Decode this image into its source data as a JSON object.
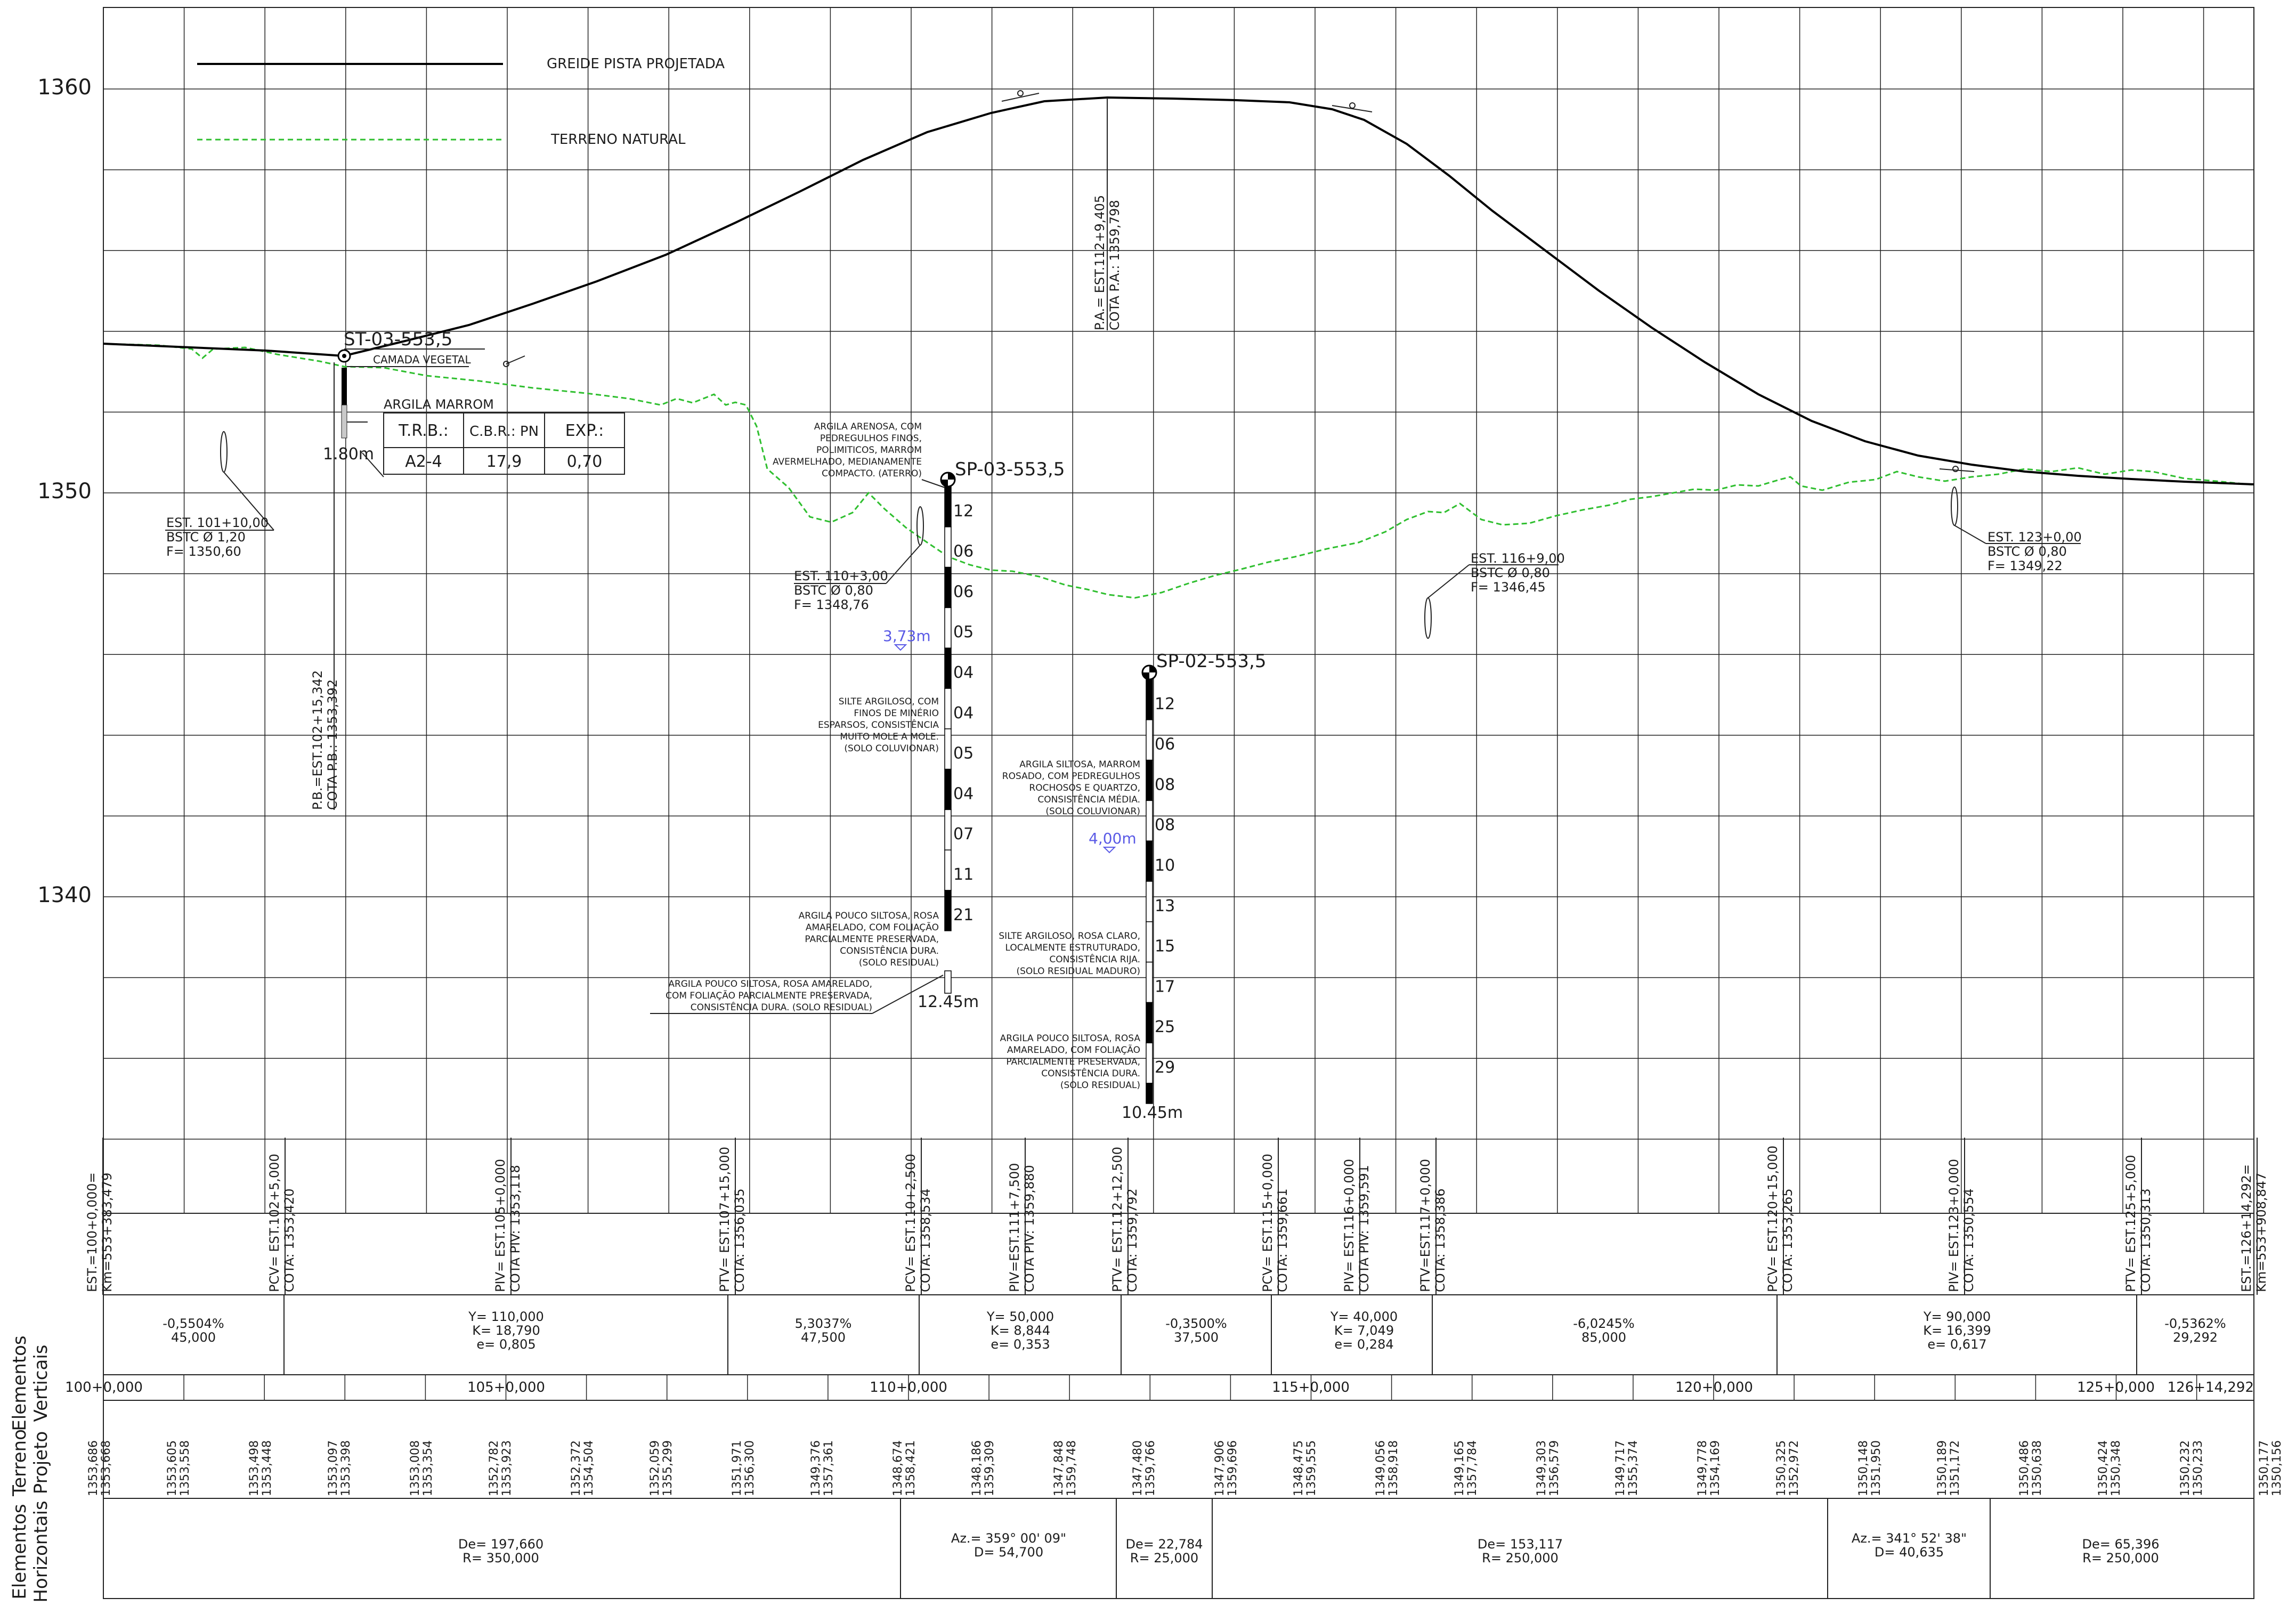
{
  "profile": {
    "elevation_labels": [
      "1360",
      "1350",
      "1340"
    ],
    "legend": {
      "grade_label": "GREIDE PISTA PROJETADA",
      "terrain_label": "TERRENO NATURAL"
    },
    "high_point": {
      "station_label": "P.A.= EST.112+9,405",
      "elevation_label": "COTA P.A.: 1359,798"
    },
    "low_point": {
      "station_label": "P.B.=EST.102+15,342",
      "elevation_label": "COTA P.B.: 1353,392"
    }
  },
  "boreholes": [
    {
      "id": "ST-03-553,5",
      "top_label": "CAMADA VEGETAL",
      "layer_label": "ARGILA MARROM",
      "depth": "1.80m",
      "table": {
        "headers": [
          "T.R.B.:",
          "C.B.R.: PN",
          "EXP.:"
        ],
        "values": [
          "A2-4",
          "17,9",
          "0,70"
        ]
      }
    },
    {
      "id": "SP-03-553,5",
      "spt": [
        "12",
        "06",
        "06",
        "05",
        "04",
        "04",
        "05",
        "04",
        "07",
        "11",
        "21"
      ],
      "water": "3,73m",
      "depth": "12.45m",
      "layers": [
        "ARGILA ARENOSA, COM PEDREGULHOS FINOS, POLIMITICOS, MARROM AVERMELHADO, MEDIANAMENTE COMPACTO. (ATERRO)",
        "SILTE ARGILOSO, COM FINOS DE MINÉRIO ESPARSOS, CONSISTÊNCIA MUITO MOLE A MOLE. (SOLO COLUVIONAR)",
        "ARGILA POUCO SILTOSA, ROSA AMARELADO, COM FOLIAÇÃO PARCIALMENTE PRESERVADA, CONSISTÊNCIA DURA. (SOLO RESIDUAL)",
        "ARGILA POUCO SILTOSA, ROSA AMARELADO, COM FOLIAÇÃO PARCIALMENTE PRESERVADA, CONSISTÊNCIA DURA. (SOLO RESIDUAL)"
      ]
    },
    {
      "id": "SP-02-553,5",
      "spt": [
        "12",
        "06",
        "08",
        "08",
        "10",
        "13",
        "15",
        "17",
        "25",
        "29"
      ],
      "water": "4,00m",
      "depth": "10.45m",
      "layers": [
        "ARGILA SILTOSA, MARROM ROSADO, COM PEDREGULHOS ROCHOSOS E QUARTZO, CONSISTÊNCIA MÉDIA. (SOLO COLUVIONAR)",
        "SILTE ARGILOSO, ROSA CLARO, LOCALMENTE ESTRUTURADO, CONSISTÊNCIA RIJA. (SOLO RESIDUAL MADURO)",
        "ARGILA POUCO SILTOSA, ROSA AMARELADO, COM FOLIAÇÃO PARCIALMENTE PRESERVADA, CONSISTÊNCIA DURA. (SOLO RESIDUAL)"
      ]
    }
  ],
  "culverts": [
    [
      "EST. 101+10,00",
      "BSTC  Ø 1,20",
      "F= 1350,60"
    ],
    [
      "EST. 110+3,00",
      "BSTC  Ø 0,80",
      "F= 1348,76"
    ],
    [
      "EST. 116+9,00",
      "BSTC  Ø 0,80",
      "F= 1346,45"
    ],
    [
      "EST. 123+0,00",
      "BSTC Ø 0,80",
      "F= 1349,22"
    ]
  ],
  "stations": [
    [
      "EST.=100+0,000=",
      "Km=553+383,479"
    ],
    [
      "PCV= EST.102+5,000",
      "COTA: 1353,420"
    ],
    [
      "PIV= EST.105+0,000",
      "COTA PIV: 1353,118"
    ],
    [
      "PTV= EST.107+15,000",
      "COTA: 1356,035"
    ],
    [
      "PCV= EST.110+2,500",
      "COTA: 1358,534"
    ],
    [
      "PIV=EST.111+7,500",
      "COTA PIV: 1359,880"
    ],
    [
      "PTV= EST.112+12,500",
      "COTA: 1359,792"
    ],
    [
      "PCV= EST.115+0,000",
      "COTA: 1359,661"
    ],
    [
      "PIV= EST.116+0,000",
      "COTA PIV: 1359,591"
    ],
    [
      "PTV=EST.117+0,000",
      "COTA: 1358,386"
    ],
    [
      "PCV= EST.120+15,000",
      "COTA: 1353,265"
    ],
    [
      "PIV= EST.123+0,000",
      "COTA: 1350,554"
    ],
    [
      "PTV= EST.125+5,000",
      "COTA: 1350,313"
    ],
    [
      "EST.=126+14,292=",
      "Km=553+908,847"
    ]
  ],
  "vertical_elements": {
    "title": [
      "Elementos",
      "Verticais"
    ],
    "cells": [
      [
        "-0,5504%",
        "45,000"
      ],
      [
        "Y= 110,000",
        "K= 18,790",
        "e= 0,805"
      ],
      [
        "5,3037%",
        "47,500"
      ],
      [
        "Y= 50,000",
        "K= 8,844",
        "e= 0,353"
      ],
      [
        "-0,3500%",
        "37,500"
      ],
      [
        "Y= 40,000",
        "K= 7,049",
        "e= 0,284"
      ],
      [
        "-6,0245%",
        "85,000"
      ],
      [
        "Y= 90,000",
        "K= 16,399",
        "e= 0,617"
      ],
      [
        "-0,5362%",
        "29,292"
      ]
    ]
  },
  "axis_labels": [
    "100+0,000",
    "105+0,000",
    "110+0,000",
    "115+0,000",
    "120+0,000",
    "125+0,000",
    "126+14,292"
  ],
  "terrain_project": {
    "title": [
      "Terreno",
      "Projeto"
    ],
    "values": [
      [
        "1353,686",
        "1353,668"
      ],
      [
        "1353,605",
        "1353,558"
      ],
      [
        "1353,498",
        "1353,448"
      ],
      [
        "1353,097",
        "1353,398"
      ],
      [
        "1353,008",
        "1353,354"
      ],
      [
        "1352,782",
        "1353,923"
      ],
      [
        "1352,372",
        "1354,504"
      ],
      [
        "1352,059",
        "1355,299"
      ],
      [
        "1351,971",
        "1356,300"
      ],
      [
        "1349,376",
        "1357,361"
      ],
      [
        "1348,674",
        "1358,421"
      ],
      [
        "1348,186",
        "1359,309"
      ],
      [
        "1347,848",
        "1359,748"
      ],
      [
        "1347,480",
        "1359,766"
      ],
      [
        "1347,906",
        "1359,696"
      ],
      [
        "1348,475",
        "1359,555"
      ],
      [
        "1349,056",
        "1358,918"
      ],
      [
        "1349,165",
        "1357,784"
      ],
      [
        "1349,303",
        "1356,579"
      ],
      [
        "1349,717",
        "1355,374"
      ],
      [
        "1349,778",
        "1354,169"
      ],
      [
        "1350,325",
        "1352,972"
      ],
      [
        "1350,148",
        "1351,950"
      ],
      [
        "1350,189",
        "1351,172"
      ],
      [
        "1350,486",
        "1350,638"
      ],
      [
        "1350,424",
        "1350,348"
      ],
      [
        "1350,232",
        "1350,233"
      ],
      [
        "1350,177",
        "1350,156"
      ]
    ]
  },
  "horizontal_elements": {
    "title": [
      "Elementos",
      "Horizontais"
    ],
    "cells": [
      [
        "De= 197,660",
        "R= 350,000"
      ],
      [
        "Az.= 359° 00' 09\"",
        "D= 54,700"
      ],
      [
        "De= 22,784",
        "R= 25,000"
      ],
      [
        "De= 153,117",
        "R= 250,000"
      ],
      [
        "Az.= 341° 52' 38\"",
        "D= 40,635"
      ],
      [
        "De= 65,396",
        "R= 250,000"
      ]
    ]
  }
}
